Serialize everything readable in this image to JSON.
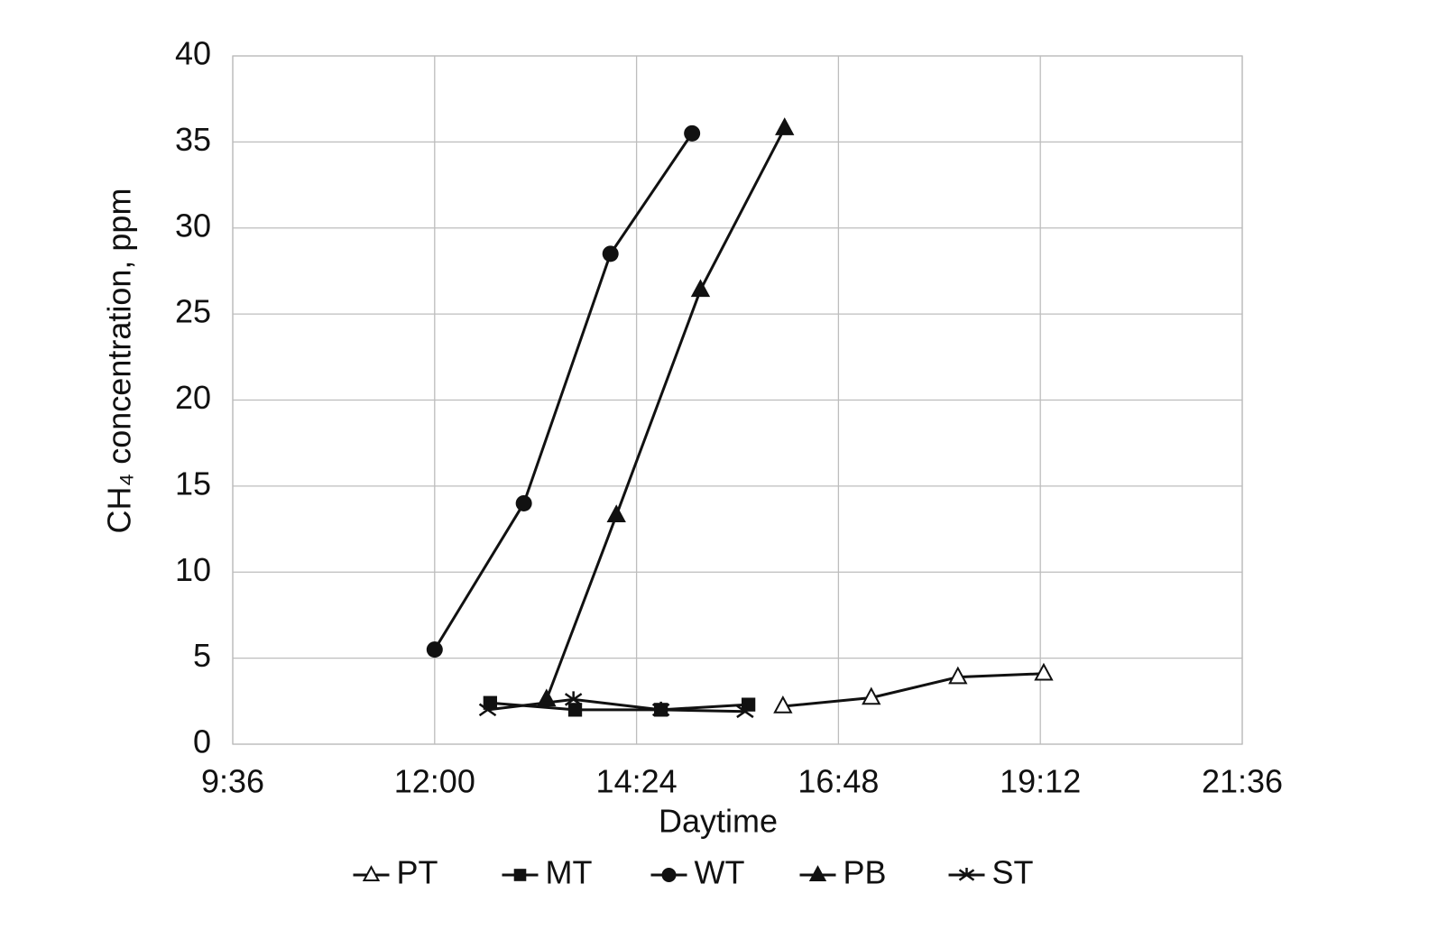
{
  "chart_data": {
    "type": "line",
    "xlabel": "Daytime",
    "ylabel": "CH₄ concentration, ppm",
    "xlim": [
      9.6,
      21.6
    ],
    "xticks": [
      {
        "value": 9.6,
        "label": "9:36"
      },
      {
        "value": 12,
        "label": "12:00"
      },
      {
        "value": 14.4,
        "label": "14:24"
      },
      {
        "value": 16.8,
        "label": "16:48"
      },
      {
        "value": 19.2,
        "label": "19:12"
      },
      {
        "value": 21.6,
        "label": "21:36"
      }
    ],
    "ylim": [
      0,
      40
    ],
    "yticks": [
      0,
      5,
      10,
      15,
      20,
      25,
      30,
      35,
      40
    ],
    "grid": true,
    "legend": "bottom",
    "series": [
      {
        "name": "PT",
        "color": "#111111",
        "marker": "triangle-open",
        "x": [
          16.14,
          17.19,
          18.22,
          19.24
        ],
        "values": [
          2.2,
          2.7,
          3.9,
          4.1
        ]
      },
      {
        "name": "MT",
        "color": "#111111",
        "marker": "square",
        "x": [
          12.66,
          13.67,
          14.69,
          15.73
        ],
        "values": [
          2.4,
          2.0,
          2.0,
          2.3
        ]
      },
      {
        "name": "WT",
        "color": "#111111",
        "marker": "circle",
        "x": [
          12.0,
          13.06,
          14.09,
          15.06
        ],
        "values": [
          5.5,
          14.0,
          28.5,
          35.5
        ]
      },
      {
        "name": "PB",
        "color": "#111111",
        "marker": "triangle",
        "x": [
          13.33,
          14.16,
          15.16,
          16.16
        ],
        "values": [
          2.6,
          13.3,
          26.4,
          35.8
        ]
      },
      {
        "name": "ST",
        "color": "#111111",
        "marker": "star",
        "x": [
          12.63,
          13.65,
          14.69,
          15.69
        ],
        "values": [
          2.0,
          2.6,
          2.0,
          1.9
        ]
      }
    ]
  }
}
